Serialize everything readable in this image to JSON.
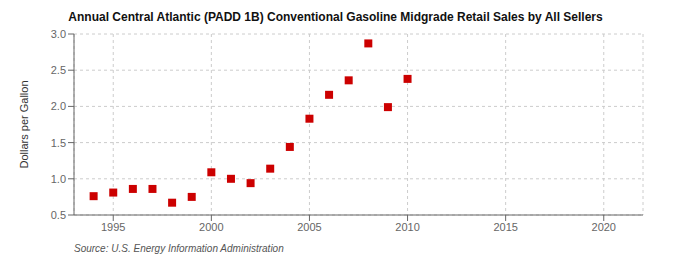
{
  "chart_data": {
    "type": "scatter",
    "title": "Annual Central Atlantic (PADD 1B) Conventional Gasoline Midgrade Retail Sales by All Sellers",
    "ylabel": "Dollars per Gallon",
    "annotations": [
      "Source: U.S. Energy Information Administration"
    ],
    "x": [
      1994,
      1995,
      1996,
      1997,
      1998,
      1999,
      2000,
      2001,
      2002,
      2003,
      2004,
      2005,
      2006,
      2007,
      2008,
      2009,
      2010
    ],
    "values": [
      0.76,
      0.81,
      0.86,
      0.86,
      0.67,
      0.75,
      1.09,
      1.0,
      0.94,
      1.14,
      1.44,
      1.83,
      2.16,
      2.36,
      2.87,
      1.99,
      2.38
    ],
    "color": "#cc0000",
    "marker": "square",
    "xlim": [
      1993,
      2022
    ],
    "ylim": [
      0.5,
      3.0
    ],
    "xticks": [
      1995,
      2000,
      2005,
      2010,
      2015,
      2020
    ],
    "yticks": [
      0.5,
      {
        "value": 1,
        "label": "1.0"
      },
      1.5,
      {
        "value": 2,
        "label": "2.0"
      },
      2.5,
      {
        "value": 3,
        "label": "3.0"
      }
    ],
    "grid": true
  }
}
